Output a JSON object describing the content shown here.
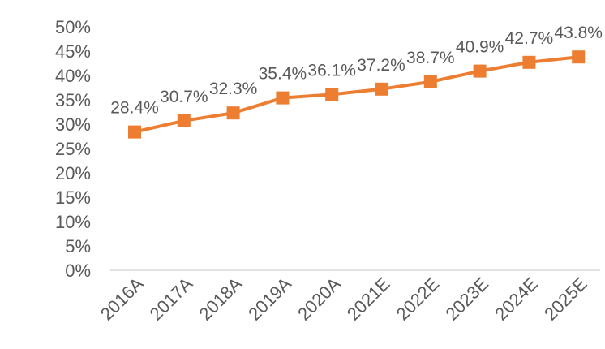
{
  "chart_data": {
    "type": "line",
    "title": "",
    "xlabel": "",
    "ylabel": "",
    "categories": [
      "2016A",
      "2017A",
      "2018A",
      "2019A",
      "2020A",
      "2021E",
      "2022E",
      "2023E",
      "2024E",
      "2025E"
    ],
    "series": [
      {
        "values": [
          28.4,
          30.7,
          32.3,
          35.4,
          36.1,
          37.2,
          38.7,
          40.9,
          42.7,
          43.8
        ],
        "labels": [
          "28.4%",
          "30.7%",
          "32.3%",
          "35.4%",
          "36.1%",
          "37.2%",
          "38.7%",
          "40.9%",
          "42.7%",
          "43.8%"
        ],
        "color": "#ED7D31",
        "marker": "square"
      }
    ],
    "yticks": [
      "0%",
      "5%",
      "10%",
      "15%",
      "20%",
      "25%",
      "30%",
      "35%",
      "40%",
      "45%",
      "50%"
    ],
    "ylim": [
      0,
      50
    ],
    "ystep": 5,
    "grid": false,
    "legend": "none",
    "axis_color": "#D9D9D9",
    "text_color": "#595959"
  }
}
